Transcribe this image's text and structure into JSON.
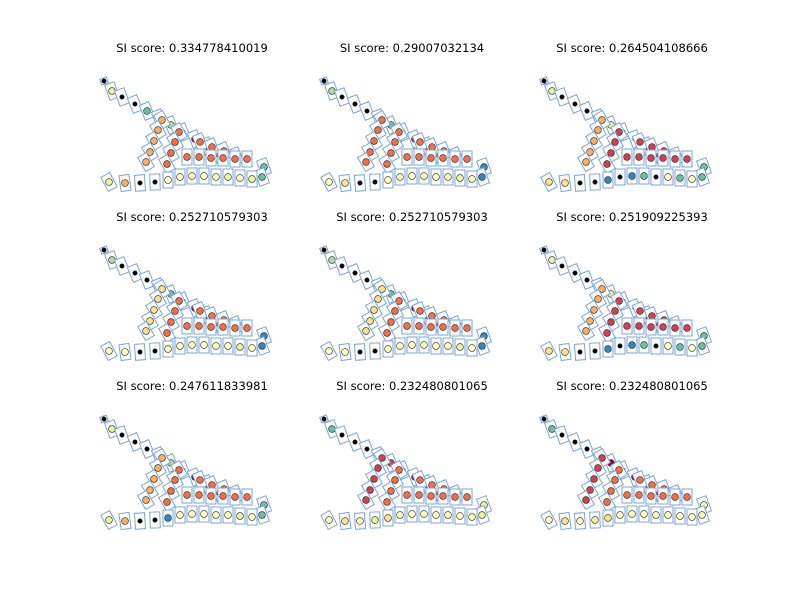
{
  "chart_data": {
    "type": "scatter",
    "grid": false,
    "legend": "none",
    "colors": {
      "box_stroke": "#7aa6d6",
      "marker_stroke": "#222222",
      "palette": {
        "black": "#000000",
        "darkred": "#9e0142",
        "red": "#d53e4f",
        "orange": "#f46d43",
        "lightorange": "#fdae61",
        "yellow": "#fee08b",
        "paleyellow": "#ffffbf",
        "lightgreen": "#e6f598",
        "green": "#abdda4",
        "teal": "#66c2a5",
        "blue": "#3288bd"
      }
    },
    "panels": [
      {
        "title": "SI score: 0.334778410019",
        "groups": {
          "top": "lightgreen",
          "row": [
            "black",
            "teal",
            "black",
            "green",
            "black",
            "darkred",
            "darkred",
            "red"
          ],
          "upper": "lightorange",
          "middle": "orange",
          "pair": "teal",
          "bottom": [
            "lightgreen",
            "lightorange",
            "black",
            "black",
            "paleyellow",
            "paleyellow",
            "paleyellow",
            "paleyellow",
            "paleyellow",
            "lightgreen",
            "paleyellow",
            "lightgreen"
          ]
        }
      },
      {
        "title": "SI score: 0.29007032134",
        "groups": {
          "top": "green",
          "row": [
            "black",
            "black",
            "black",
            "teal",
            "black",
            "darkred",
            "darkred",
            "red"
          ],
          "upper": "orange",
          "middle": "orange",
          "pair": "blue",
          "bottom": [
            "paleyellow",
            "yellow",
            "black",
            "black",
            "paleyellow",
            "paleyellow",
            "paleyellow",
            "paleyellow",
            "paleyellow",
            "paleyellow",
            "lightgreen",
            "paleyellow"
          ]
        }
      },
      {
        "title": "SI score: 0.264504108666",
        "groups": {
          "top": "lightgreen",
          "row": [
            "black",
            "black",
            "black",
            "lightgreen",
            "black",
            "black",
            "darkred",
            "darkred"
          ],
          "upper": "lightorange",
          "middle": "red",
          "pair": "teal",
          "bottom": [
            "yellow",
            "yellow",
            "black",
            "black",
            "blue",
            "black",
            "blue",
            "teal",
            "black",
            "paleyellow",
            "teal",
            "paleyellow"
          ]
        }
      },
      {
        "title": "SI score: 0.252710579303",
        "groups": {
          "top": "green",
          "row": [
            "black",
            "black",
            "black",
            "teal",
            "black",
            "darkred",
            "darkred",
            "red"
          ],
          "upper": "yellow",
          "middle": "orange",
          "pair": "blue",
          "bottom": [
            "paleyellow",
            "paleyellow",
            "black",
            "black",
            "paleyellow",
            "paleyellow",
            "paleyellow",
            "paleyellow",
            "paleyellow",
            "paleyellow",
            "lightgreen",
            "paleyellow"
          ]
        }
      },
      {
        "title": "SI score: 0.252710579303",
        "groups": {
          "top": "green",
          "row": [
            "black",
            "black",
            "black",
            "teal",
            "black",
            "darkred",
            "darkred",
            "red"
          ],
          "upper": "yellow",
          "middle": "orange",
          "pair": "blue",
          "bottom": [
            "paleyellow",
            "paleyellow",
            "black",
            "black",
            "paleyellow",
            "paleyellow",
            "paleyellow",
            "paleyellow",
            "paleyellow",
            "paleyellow",
            "lightgreen",
            "paleyellow"
          ]
        }
      },
      {
        "title": "SI score: 0.251909225393",
        "groups": {
          "top": "lightgreen",
          "row": [
            "black",
            "black",
            "black",
            "lightgreen",
            "black",
            "black",
            "darkred",
            "darkred"
          ],
          "upper": "lightorange",
          "middle": "red",
          "pair": "teal",
          "bottom": [
            "yellow",
            "yellow",
            "black",
            "black",
            "blue",
            "black",
            "blue",
            "teal",
            "black",
            "paleyellow",
            "teal",
            "paleyellow"
          ]
        }
      },
      {
        "title": "SI score: 0.247611833981",
        "groups": {
          "top": "lightgreen",
          "row": [
            "black",
            "black",
            "black",
            "green",
            "black",
            "darkred",
            "darkred",
            "red"
          ],
          "upper": "lightorange",
          "middle": "orange",
          "pair": "teal",
          "bottom": [
            "lightgreen",
            "lightorange",
            "black",
            "black",
            "blue",
            "paleyellow",
            "paleyellow",
            "paleyellow",
            "paleyellow",
            "paleyellow",
            "lightgreen",
            "paleyellow"
          ]
        }
      },
      {
        "title": "SI score: 0.232480801065",
        "groups": {
          "top": "teal",
          "row": [
            "black",
            "black",
            "black",
            "red",
            "black",
            "darkred",
            "darkred",
            "red"
          ],
          "upper": "red",
          "middle": "orange",
          "pair": "lightgreen",
          "bottom": [
            "paleyellow",
            "yellow",
            "paleyellow",
            "lightgreen",
            "yellow",
            "paleyellow",
            "paleyellow",
            "paleyellow",
            "paleyellow",
            "paleyellow",
            "paleyellow",
            "paleyellow"
          ]
        }
      },
      {
        "title": "SI score: 0.232480801065",
        "groups": {
          "top": "teal",
          "row": [
            "black",
            "black",
            "black",
            "darkred",
            "black",
            "darkred",
            "darkred",
            "darkred"
          ],
          "upper": "red",
          "middle": "orange",
          "pair": "paleyellow",
          "bottom": [
            "paleyellow",
            "yellow",
            "paleyellow",
            "lightgreen",
            "yellow",
            "paleyellow",
            "paleyellow",
            "paleyellow",
            "paleyellow",
            "paleyellow",
            "paleyellow",
            "paleyellow"
          ]
        }
      }
    ]
  }
}
